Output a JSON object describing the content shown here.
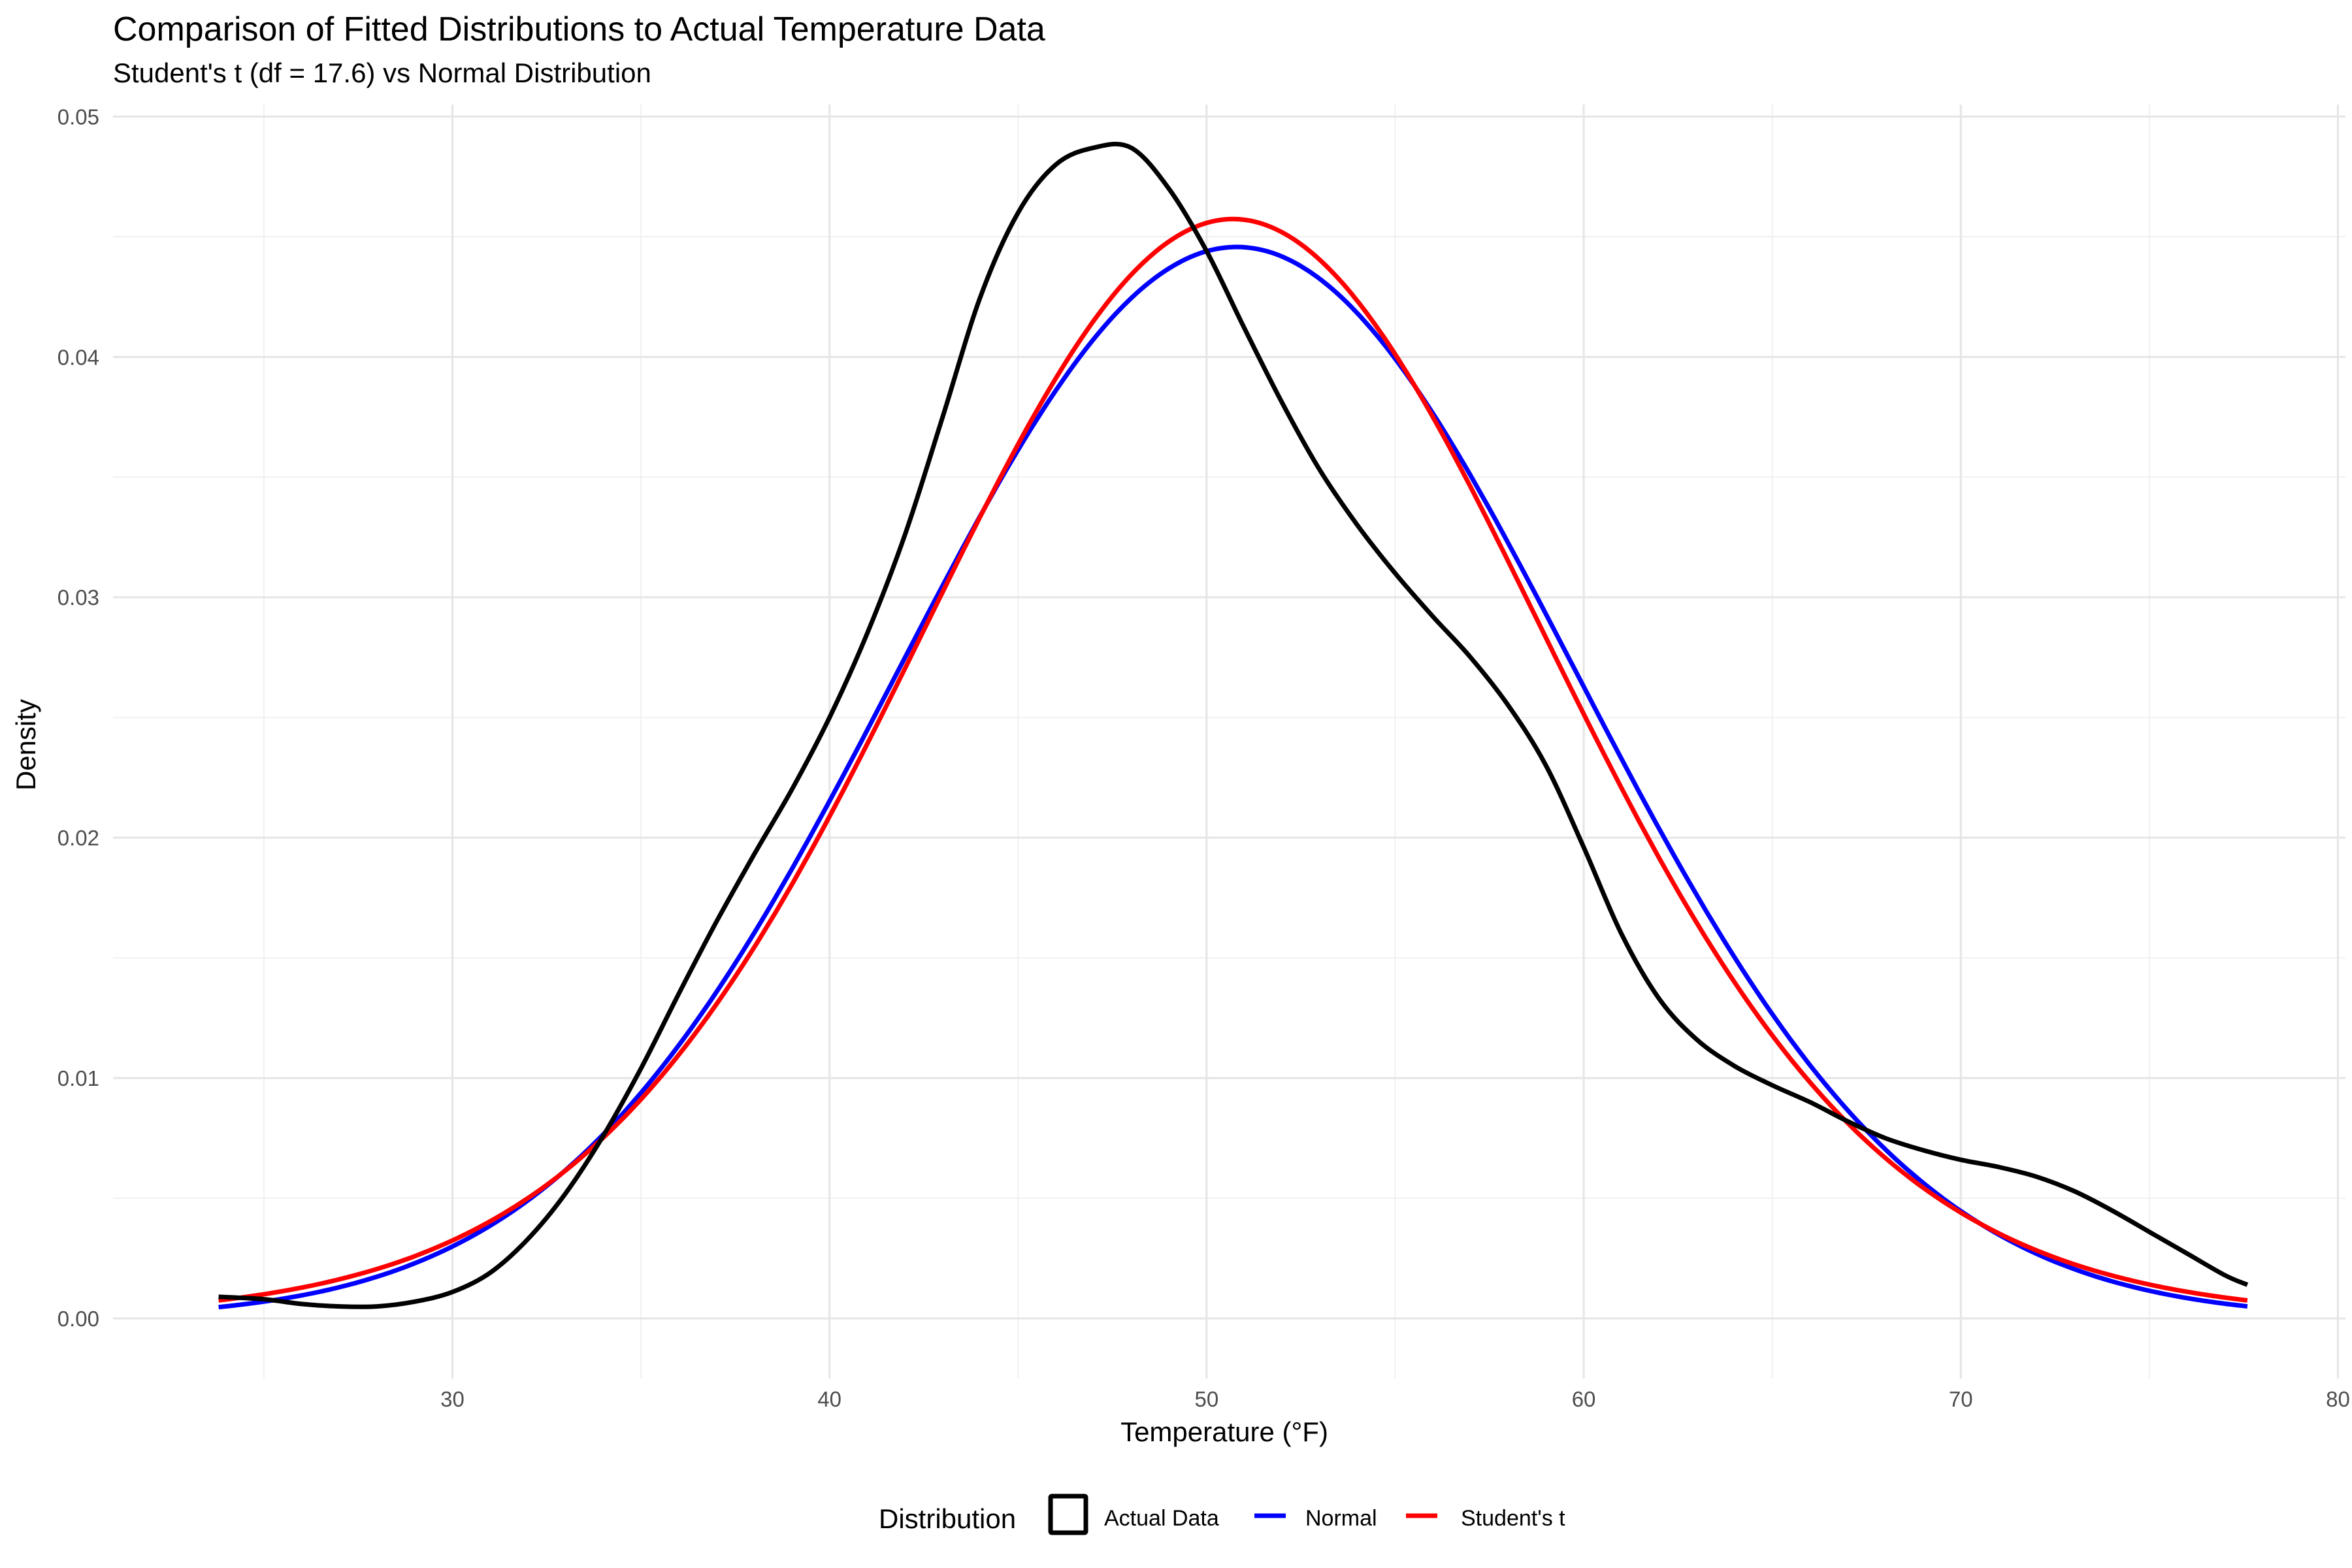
{
  "chart_data": {
    "type": "line",
    "title": "Comparison of Fitted Distributions to Actual Temperature Data",
    "subtitle": "Student's t (df = 17.6) vs Normal Distribution",
    "xlabel": "Temperature (°F)",
    "ylabel": "Density",
    "xlim": [
      21,
      80.2
    ],
    "ylim": [
      -0.0025,
      0.0505
    ],
    "x_ticks": [
      30,
      40,
      50,
      60,
      70,
      80
    ],
    "y_ticks": [
      0.0,
      0.01,
      0.02,
      0.03,
      0.04,
      0.05
    ],
    "x_tick_labels": [
      "30",
      "40",
      "50",
      "60",
      "70",
      "80"
    ],
    "y_tick_labels": [
      "0.00",
      "0.01",
      "0.02",
      "0.03",
      "0.04",
      "0.05"
    ],
    "grid": true,
    "legend": {
      "title": "Distribution",
      "position": "bottom",
      "entries": [
        {
          "label": "Actual Data",
          "key": "box"
        },
        {
          "label": "Normal",
          "key": "line"
        },
        {
          "label": "Student's t",
          "key": "line"
        }
      ]
    },
    "series": [
      {
        "name": "Actual Data",
        "color": "#000000",
        "x": [
          23.8,
          25.0,
          26.0,
          27.0,
          28.0,
          29.0,
          30.0,
          31.0,
          32.0,
          33.0,
          34.0,
          35.0,
          36.0,
          37.0,
          38.0,
          39.0,
          40.0,
          41.0,
          42.0,
          43.0,
          44.0,
          45.0,
          46.0,
          47.0,
          48.0,
          49.0,
          50.0,
          51.0,
          52.0,
          53.0,
          54.0,
          55.0,
          56.0,
          57.0,
          58.0,
          59.0,
          60.0,
          61.0,
          62.0,
          63.0,
          64.0,
          65.0,
          66.0,
          67.0,
          68.0,
          69.0,
          70.0,
          71.0,
          72.0,
          73.0,
          74.0,
          75.0,
          76.0,
          77.0,
          77.6
        ],
        "y": [
          0.0009,
          0.0008,
          0.0006,
          0.0005,
          0.0005,
          0.0007,
          0.0011,
          0.0019,
          0.0033,
          0.0052,
          0.0076,
          0.0104,
          0.0135,
          0.0165,
          0.0193,
          0.022,
          0.025,
          0.0285,
          0.0326,
          0.0375,
          0.0425,
          0.046,
          0.048,
          0.0487,
          0.0487,
          0.047,
          0.0444,
          0.0412,
          0.0381,
          0.0353,
          0.033,
          0.031,
          0.0292,
          0.0275,
          0.0255,
          0.023,
          0.0196,
          0.016,
          0.0133,
          0.0116,
          0.0105,
          0.0097,
          0.009,
          0.0082,
          0.0075,
          0.007,
          0.0066,
          0.0063,
          0.0059,
          0.0053,
          0.0045,
          0.0036,
          0.0027,
          0.0018,
          0.0014
        ]
      },
      {
        "name": "Normal",
        "color": "#0000ff",
        "mean": 50.8,
        "sd": 8.95,
        "x_start": 23.8,
        "x_end": 77.6
      },
      {
        "name": "Student's t",
        "color": "#ff0000",
        "df": 17.6,
        "mean": 50.7,
        "scale": 8.6,
        "x_start": 23.8,
        "x_end": 77.6
      }
    ]
  }
}
